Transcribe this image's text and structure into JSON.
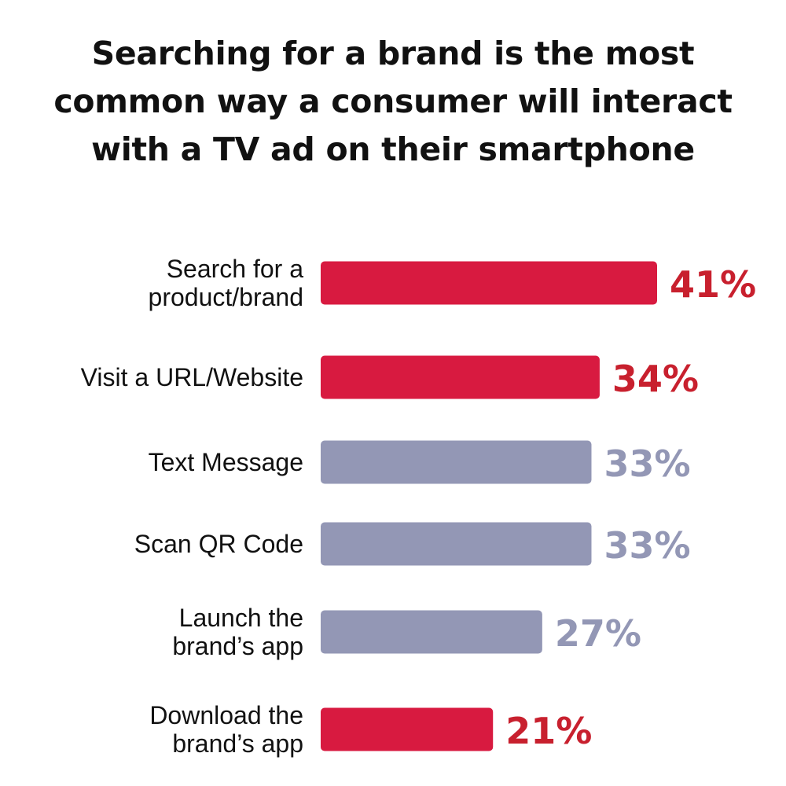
{
  "chart_data": {
    "type": "bar",
    "orientation": "horizontal",
    "title": "Searching for a brand is the most common way a consumer will interact with a TV ad on their smartphone",
    "categories": [
      [
        "Search for a",
        "product/brand"
      ],
      [
        "Visit a URL/Website"
      ],
      [
        "Text Message"
      ],
      [
        "Scan QR Code"
      ],
      [
        "Launch the",
        "brand’s app"
      ],
      [
        "Download the",
        "brand’s app"
      ]
    ],
    "values": [
      41,
      34,
      33,
      33,
      27,
      21
    ],
    "value_labels": [
      "41%",
      "34%",
      "33%",
      "33%",
      "27%",
      "21%"
    ],
    "highlighted": [
      true,
      true,
      false,
      false,
      false,
      true
    ],
    "xlim": [
      0,
      41
    ],
    "grid": false,
    "legend": "none",
    "colors": {
      "highlight": "#D81A40",
      "highlight_text": "#C8202E",
      "muted": "#9397B5",
      "text": "#111111"
    }
  }
}
